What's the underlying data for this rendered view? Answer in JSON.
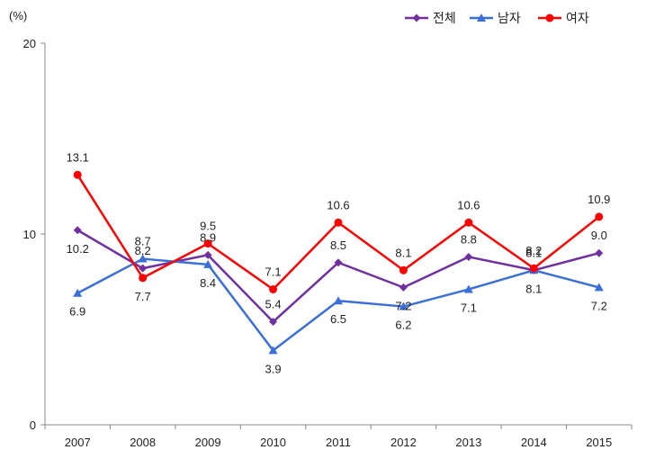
{
  "chart_data": {
    "type": "line",
    "unit": "(%)",
    "categories": [
      "2007",
      "2008",
      "2009",
      "2010",
      "2011",
      "2012",
      "2013",
      "2014",
      "2015"
    ],
    "ylim": [
      0,
      20
    ],
    "yticks": [
      "0",
      "10",
      "20"
    ],
    "grid": false,
    "legend_position": "top-right",
    "series": [
      {
        "name": "전체",
        "color": "#7030a0",
        "marker": "diamond",
        "values": [
          10.2,
          8.2,
          8.9,
          5.4,
          8.5,
          7.2,
          8.8,
          8.1,
          9.0
        ],
        "labels": [
          "10.2",
          "8.2",
          "8.9",
          "5.4",
          "8.5",
          "7.2",
          "8.8",
          "8.1",
          "9.0"
        ]
      },
      {
        "name": "남자",
        "color": "#3b6fd8",
        "marker": "triangle",
        "values": [
          6.9,
          8.7,
          8.4,
          3.9,
          6.5,
          6.2,
          7.1,
          8.1,
          7.2
        ],
        "labels": [
          "6.9",
          "8.7",
          "8.4",
          "3.9",
          "6.5",
          "6.2",
          "7.1",
          "8.1",
          "7.2"
        ]
      },
      {
        "name": "여자",
        "color": "#ff0000",
        "marker": "circle",
        "values": [
          13.1,
          7.7,
          9.5,
          7.1,
          10.6,
          8.1,
          10.6,
          8.2,
          10.9
        ],
        "labels": [
          "13.1",
          "7.7",
          "9.5",
          "7.1",
          "10.6",
          "8.1",
          "10.6",
          "8.2",
          "10.9"
        ]
      }
    ]
  }
}
